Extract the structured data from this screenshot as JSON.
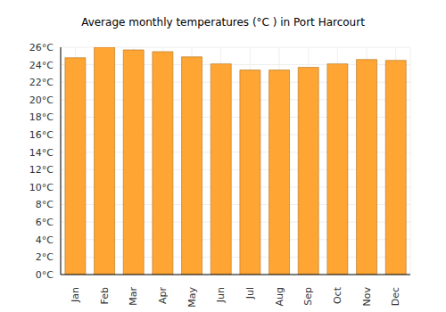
{
  "chart_data": {
    "type": "bar",
    "title": "Average monthly temperatures (°C ) in Port Harcourt",
    "categories": [
      "Jan",
      "Feb",
      "Mar",
      "Apr",
      "May",
      "Jun",
      "Jul",
      "Aug",
      "Sep",
      "Oct",
      "Nov",
      "Dec"
    ],
    "values": [
      24.8,
      26.0,
      25.7,
      25.5,
      24.9,
      24.1,
      23.4,
      23.4,
      23.7,
      24.1,
      24.6,
      24.5
    ],
    "color": "#ffa533",
    "ylim": [
      0,
      26
    ],
    "yticks": [
      {
        "value": 0,
        "label": "0°C"
      },
      {
        "value": 2,
        "label": "2°C"
      },
      {
        "value": 4,
        "label": "4°C"
      },
      {
        "value": 6,
        "label": "6°C"
      },
      {
        "value": 8,
        "label": "8°C"
      },
      {
        "value": 10,
        "label": "10°C"
      },
      {
        "value": 12,
        "label": "12°C"
      },
      {
        "value": 14,
        "label": "14°C"
      },
      {
        "value": 16,
        "label": "16°C"
      },
      {
        "value": 18,
        "label": "18°C"
      },
      {
        "value": 20,
        "label": "20°C"
      },
      {
        "value": 22,
        "label": "22°C"
      },
      {
        "value": 24,
        "label": "24°C"
      },
      {
        "value": 26,
        "label": "26°C"
      }
    ],
    "grid": true
  }
}
